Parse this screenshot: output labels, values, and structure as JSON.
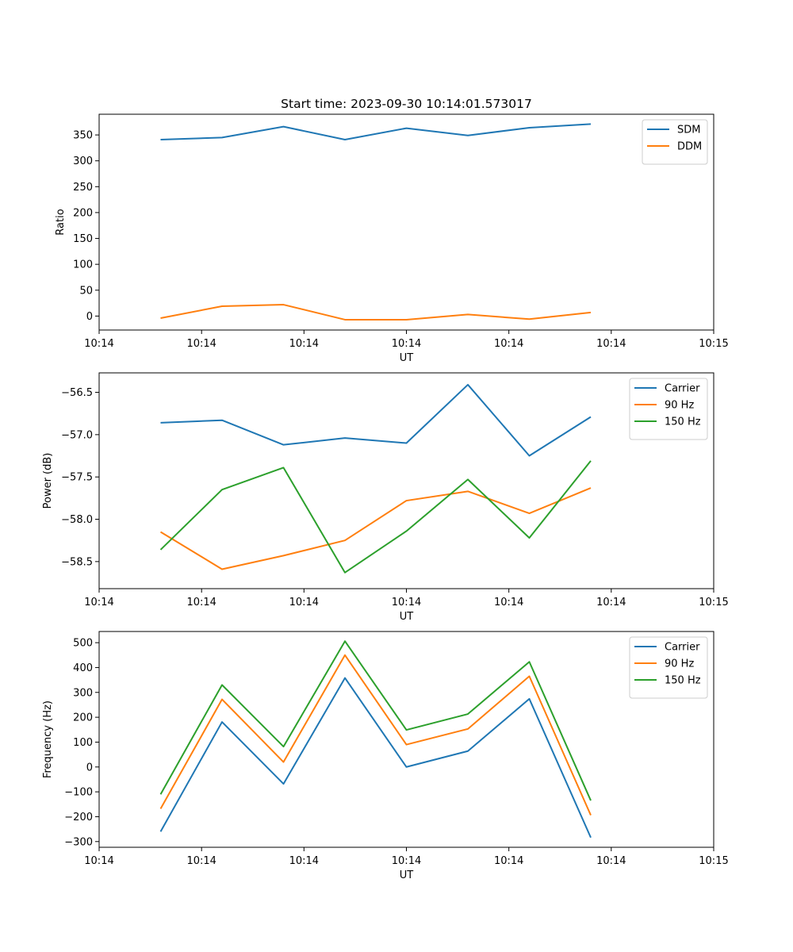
{
  "figure_title": "Start time: 2023-09-30 10:14:01.573017",
  "colors": {
    "blue": "#1f77b4",
    "orange": "#ff7f0e",
    "green": "#2ca02c"
  },
  "chart_data": [
    {
      "type": "line",
      "title": "Start time: 2023-09-30 10:14:01.573017",
      "xlabel": "UT",
      "ylabel": "Ratio",
      "xlim": [
        0,
        10
      ],
      "ylim": [
        -27,
        390
      ],
      "x": [
        1,
        2,
        3,
        4,
        5,
        6,
        7,
        8
      ],
      "xticks": [
        0,
        1.667,
        3.333,
        5,
        6.667,
        8.333,
        10
      ],
      "xtick_labels": [
        "10:14",
        "10:14",
        "10:14",
        "10:14",
        "10:14",
        "10:14",
        "10:15"
      ],
      "yticks": [
        0,
        50,
        100,
        150,
        200,
        250,
        300,
        350
      ],
      "ytick_labels": [
        "0",
        "50",
        "100",
        "150",
        "200",
        "250",
        "300",
        "350"
      ],
      "legend": "top-right",
      "series": [
        {
          "name": "SDM",
          "color": "#1f77b4",
          "values": [
            341,
            345,
            366,
            341,
            363,
            349,
            364,
            371
          ]
        },
        {
          "name": "DDM",
          "color": "#ff7f0e",
          "values": [
            -4,
            19,
            22,
            -7,
            -7,
            3,
            -6,
            7
          ]
        }
      ]
    },
    {
      "type": "line",
      "title": "",
      "xlabel": "UT",
      "ylabel": "Power (dB)",
      "xlim": [
        0,
        10
      ],
      "ylim": [
        -58.82,
        -56.27
      ],
      "x": [
        1,
        2,
        3,
        4,
        5,
        6,
        7,
        8
      ],
      "xticks": [
        0,
        1.667,
        3.333,
        5,
        6.667,
        8.333,
        10
      ],
      "xtick_labels": [
        "10:14",
        "10:14",
        "10:14",
        "10:14",
        "10:14",
        "10:14",
        "10:15"
      ],
      "yticks": [
        -56.5,
        -57.0,
        -57.5,
        -58.0,
        -58.5
      ],
      "ytick_labels": [
        "−56.5",
        "−57.0",
        "−57.5",
        "−58.0",
        "−58.5"
      ],
      "legend": "top-right",
      "series": [
        {
          "name": "Carrier",
          "color": "#1f77b4",
          "values": [
            -56.86,
            -56.83,
            -57.12,
            -57.04,
            -57.1,
            -56.41,
            -57.25,
            -56.79
          ]
        },
        {
          "name": "90 Hz",
          "color": "#ff7f0e",
          "values": [
            -58.15,
            -58.59,
            -58.43,
            -58.25,
            -57.78,
            -57.67,
            -57.93,
            -57.63
          ]
        },
        {
          "name": "150 Hz",
          "color": "#2ca02c",
          "values": [
            -58.36,
            -57.65,
            -57.39,
            -58.63,
            -58.14,
            -57.53,
            -58.22,
            -57.31
          ]
        }
      ]
    },
    {
      "type": "line",
      "title": "",
      "xlabel": "UT",
      "ylabel": "Frequency (Hz)",
      "xlim": [
        0,
        10
      ],
      "ylim": [
        -323,
        545
      ],
      "x": [
        1,
        2,
        3,
        4,
        5,
        6,
        7,
        8
      ],
      "xticks": [
        0,
        1.667,
        3.333,
        5,
        6.667,
        8.333,
        10
      ],
      "xtick_labels": [
        "10:14",
        "10:14",
        "10:14",
        "10:14",
        "10:14",
        "10:14",
        "10:15"
      ],
      "yticks": [
        -300,
        -200,
        -100,
        0,
        100,
        200,
        300,
        400,
        500
      ],
      "ytick_labels": [
        "−300",
        "−200",
        "−100",
        "0",
        "100",
        "200",
        "300",
        "400",
        "500"
      ],
      "legend": "top-right",
      "series": [
        {
          "name": "Carrier",
          "color": "#1f77b4",
          "values": [
            -260,
            181,
            -68,
            358,
            0,
            64,
            274,
            -284
          ]
        },
        {
          "name": "90 Hz",
          "color": "#ff7f0e",
          "values": [
            -168,
            272,
            20,
            450,
            90,
            153,
            365,
            -194
          ]
        },
        {
          "name": "150 Hz",
          "color": "#2ca02c",
          "values": [
            -110,
            330,
            82,
            506,
            149,
            213,
            423,
            -135
          ]
        }
      ]
    }
  ]
}
